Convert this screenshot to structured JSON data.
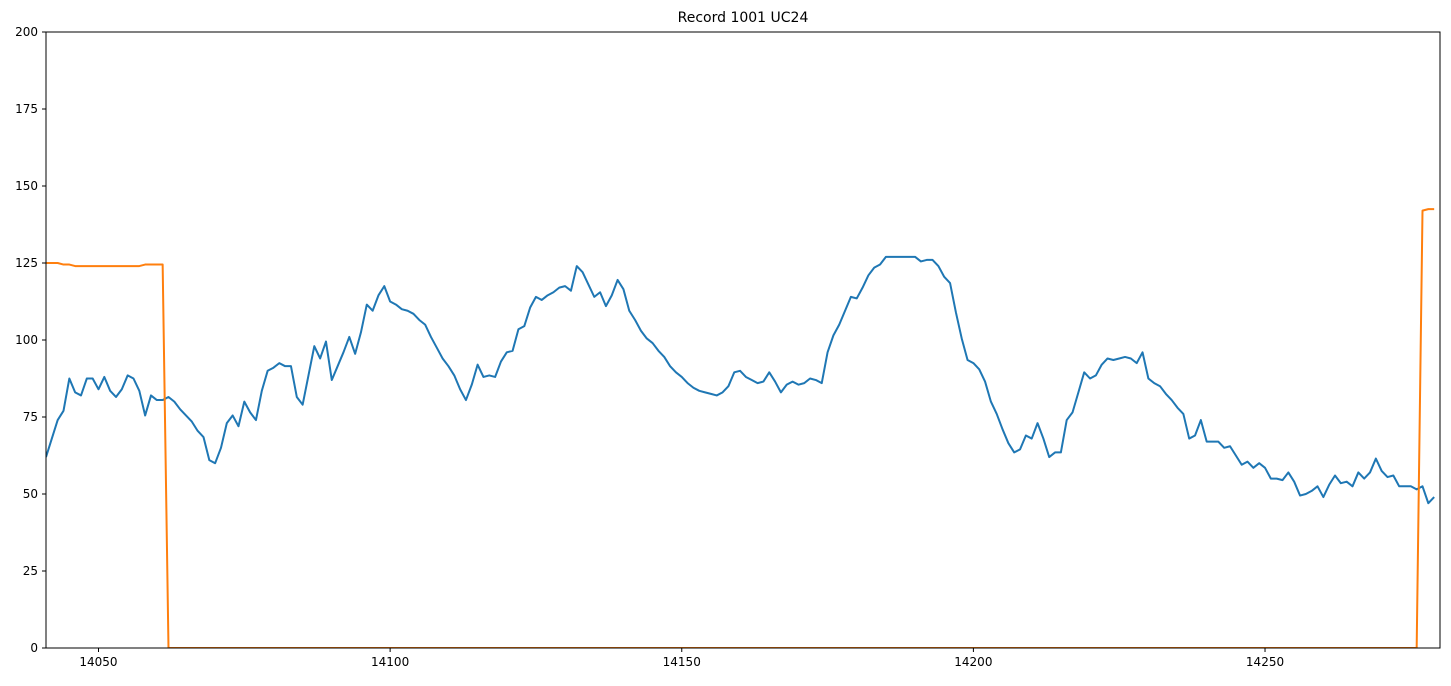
{
  "title": "Record 1001 UC24",
  "chart_data": {
    "type": "line",
    "title": "Record 1001 UC24",
    "xlabel": "",
    "ylabel": "",
    "xlim": [
      14041,
      14280
    ],
    "ylim": [
      0,
      200
    ],
    "x_ticks": [
      14050,
      14100,
      14150,
      14200,
      14250
    ],
    "y_ticks": [
      0,
      25,
      50,
      75,
      100,
      125,
      150,
      175,
      200
    ],
    "grid": false,
    "legend": "none",
    "colors": [
      "#1f77b4",
      "#ff7f0e"
    ],
    "series": [
      {
        "color": "#1f77b4",
        "x": [
          14041,
          14042,
          14043,
          14044,
          14045,
          14046,
          14047,
          14048,
          14049,
          14050,
          14051,
          14052,
          14053,
          14054,
          14055,
          14056,
          14057,
          14058,
          14059,
          14060,
          14061,
          14062,
          14063,
          14064,
          14065,
          14066,
          14067,
          14068,
          14069,
          14070,
          14071,
          14072,
          14073,
          14074,
          14075,
          14076,
          14077,
          14078,
          14079,
          14080,
          14081,
          14082,
          14083,
          14084,
          14085,
          14086,
          14087,
          14088,
          14089,
          14090,
          14091,
          14092,
          14093,
          14094,
          14095,
          14096,
          14097,
          14098,
          14099,
          14100,
          14101,
          14102,
          14103,
          14104,
          14105,
          14106,
          14107,
          14108,
          14109,
          14110,
          14111,
          14112,
          14113,
          14114,
          14115,
          14116,
          14117,
          14118,
          14119,
          14120,
          14121,
          14122,
          14123,
          14124,
          14125,
          14126,
          14127,
          14128,
          14129,
          14130,
          14131,
          14132,
          14133,
          14134,
          14135,
          14136,
          14137,
          14138,
          14139,
          14140,
          14141,
          14142,
          14143,
          14144,
          14145,
          14146,
          14147,
          14148,
          14149,
          14150,
          14151,
          14152,
          14153,
          14154,
          14155,
          14156,
          14157,
          14158,
          14159,
          14160,
          14161,
          14162,
          14163,
          14164,
          14165,
          14166,
          14167,
          14168,
          14169,
          14170,
          14171,
          14172,
          14173,
          14174,
          14175,
          14176,
          14177,
          14178,
          14179,
          14180,
          14181,
          14182,
          14183,
          14184,
          14185,
          14186,
          14187,
          14188,
          14189,
          14190,
          14191,
          14192,
          14193,
          14194,
          14195,
          14196,
          14197,
          14198,
          14199,
          14200,
          14201,
          14202,
          14203,
          14204,
          14205,
          14206,
          14207,
          14208,
          14209,
          14210,
          14211,
          14212,
          14213,
          14214,
          14215,
          14216,
          14217,
          14218,
          14219,
          14220,
          14221,
          14222,
          14223,
          14224,
          14225,
          14226,
          14227,
          14228,
          14229,
          14230,
          14231,
          14232,
          14233,
          14234,
          14235,
          14236,
          14237,
          14238,
          14239,
          14240,
          14241,
          14242,
          14243,
          14244,
          14245,
          14246,
          14247,
          14248,
          14249,
          14250,
          14251,
          14252,
          14253,
          14254,
          14255,
          14256,
          14257,
          14258,
          14259,
          14260,
          14261,
          14262,
          14263,
          14264,
          14265,
          14266,
          14267,
          14268,
          14269,
          14270,
          14271,
          14272,
          14273,
          14274,
          14275,
          14276,
          14277,
          14278,
          14279
        ],
        "y": [
          62,
          68,
          74,
          77,
          87.5,
          83,
          82,
          87.5,
          87.5,
          84,
          88,
          83.5,
          81.5,
          84,
          88.5,
          87.5,
          83.5,
          75.5,
          82,
          80.5,
          80.5,
          81.5,
          80,
          77.5,
          75.5,
          73.5,
          70.5,
          68.5,
          61,
          60,
          65,
          73,
          75.5,
          72,
          80,
          76.5,
          74,
          83.5,
          90,
          91,
          92.5,
          91.5,
          91.5,
          81.5,
          79,
          88.5,
          98,
          94,
          99.5,
          87,
          91.5,
          96,
          101,
          95.5,
          102.5,
          111.5,
          109.5,
          114.5,
          117.5,
          112.5,
          111.5,
          110,
          109.5,
          108.5,
          106.5,
          105,
          101,
          97.5,
          94,
          91.5,
          88.5,
          84,
          80.5,
          85.5,
          92,
          88,
          88.5,
          88,
          93,
          96,
          96.5,
          103.5,
          104.5,
          110.5,
          114,
          113,
          114.5,
          115.5,
          117,
          117.5,
          116,
          124,
          122,
          118,
          114,
          115.5,
          111,
          114.5,
          119.5,
          116.5,
          109.5,
          106.5,
          103,
          100.5,
          99,
          96.5,
          94.5,
          91.5,
          89.5,
          88,
          86,
          84.5,
          83.5,
          83,
          82.5,
          82,
          83,
          85,
          89.5,
          90,
          88,
          87,
          86,
          86.5,
          89.5,
          86.5,
          83,
          85.5,
          86.5,
          85.5,
          86,
          87.5,
          87,
          86,
          96,
          101.5,
          105,
          109.5,
          114,
          113.5,
          117,
          121,
          123.5,
          124.5,
          127,
          127,
          127,
          127,
          127,
          127,
          125.5,
          126,
          126,
          124,
          120.5,
          118.5,
          109,
          100.5,
          93.5,
          92.5,
          90.5,
          86.5,
          80,
          76,
          71,
          66.5,
          63.5,
          64.5,
          69,
          68,
          73,
          68,
          62,
          63.5,
          63.5,
          74,
          76.5,
          83,
          89.5,
          87.5,
          88.5,
          92,
          94,
          93.5,
          94,
          94.5,
          94,
          92.5,
          96,
          87.5,
          86,
          85,
          82.5,
          80.5,
          78,
          76,
          68,
          69,
          74,
          67,
          67,
          67,
          65,
          65.5,
          62.5,
          59.5,
          60.5,
          58.5,
          60,
          58.5,
          55,
          55,
          54.5,
          57,
          54,
          49.5,
          50,
          51,
          52.5,
          49,
          53,
          56,
          53.5,
          54,
          52.5,
          57,
          55,
          57,
          61.5,
          57.5,
          55.5,
          56,
          52.5,
          52.5,
          52.5,
          51.5,
          52.5,
          47,
          49
        ]
      },
      {
        "color": "#ff7f0e",
        "x": [
          14041,
          14042,
          14043,
          14044,
          14045,
          14046,
          14047,
          14048,
          14049,
          14050,
          14051,
          14052,
          14053,
          14054,
          14055,
          14056,
          14057,
          14058,
          14059,
          14060,
          14061,
          14062,
          14063,
          14064,
          14065,
          14070,
          14100,
          14150,
          14200,
          14250,
          14270,
          14275,
          14276,
          14277,
          14278,
          14279
        ],
        "y": [
          125,
          125,
          125,
          124.5,
          124.5,
          124,
          124,
          124,
          124,
          124,
          124,
          124,
          124,
          124,
          124,
          124,
          124,
          124.5,
          124.5,
          124.5,
          124.5,
          0,
          0,
          0,
          0,
          0,
          0,
          0,
          0,
          0,
          0,
          0,
          0,
          142,
          142.5,
          142.5
        ]
      }
    ]
  }
}
